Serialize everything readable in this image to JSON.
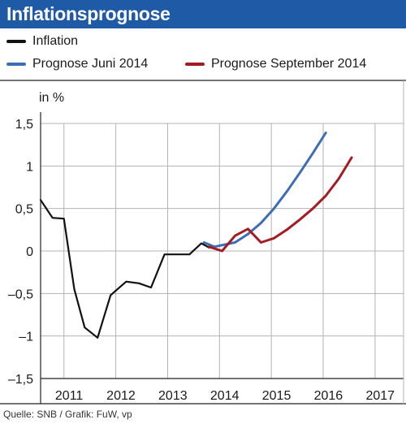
{
  "title": "Inflationsprognose",
  "legend": [
    {
      "label": "Inflation",
      "color": "#111111"
    },
    {
      "label": "Prognose Juni 2014",
      "color": "#3d6db5"
    },
    {
      "label": "Prognose September 2014",
      "color": "#a31c22"
    }
  ],
  "source": "Quelle: SNB / Grafik: FuW, vp",
  "chart_data": {
    "type": "line",
    "ylabel": "in %",
    "ylim": [
      -1.5,
      1.5
    ],
    "yticks": [
      1.5,
      1,
      0.5,
      0,
      -0.5,
      -1,
      -1.5
    ],
    "ytick_labels": [
      "1,5",
      "1",
      "0,5",
      "0",
      "–0,5",
      "–1",
      "–1,5"
    ],
    "xlim": [
      2010.75,
      2017.75
    ],
    "xticks": [
      2011,
      2012,
      2013,
      2014,
      2015,
      2016,
      2017
    ],
    "grid": true,
    "legend_position": "top-left",
    "series": [
      {
        "name": "Inflation",
        "color": "#111111",
        "points": [
          [
            2010.75,
            0.6
          ],
          [
            2010.98,
            0.39
          ],
          [
            2011.2,
            0.38
          ],
          [
            2011.4,
            -0.45
          ],
          [
            2011.6,
            -0.9
          ],
          [
            2011.85,
            -1.02
          ],
          [
            2012.1,
            -0.52
          ],
          [
            2012.4,
            -0.36
          ],
          [
            2012.65,
            -0.38
          ],
          [
            2012.88,
            -0.43
          ],
          [
            2013.14,
            -0.04
          ],
          [
            2013.4,
            -0.04
          ],
          [
            2013.62,
            -0.04
          ],
          [
            2013.85,
            0.09
          ],
          [
            2014.0,
            0.04
          ]
        ]
      },
      {
        "name": "Prognose Juni 2014",
        "color": "#3d6db5",
        "points": [
          [
            2013.9,
            0.1
          ],
          [
            2014.1,
            0.05
          ],
          [
            2014.5,
            0.1
          ],
          [
            2014.75,
            0.2
          ],
          [
            2015.0,
            0.33
          ],
          [
            2015.25,
            0.5
          ],
          [
            2015.5,
            0.7
          ],
          [
            2015.75,
            0.92
          ],
          [
            2016.0,
            1.15
          ],
          [
            2016.25,
            1.39
          ]
        ]
      },
      {
        "name": "Prognose September 2014",
        "color": "#a31c22",
        "points": [
          [
            2014.0,
            0.05
          ],
          [
            2014.25,
            0.0
          ],
          [
            2014.5,
            0.18
          ],
          [
            2014.75,
            0.26
          ],
          [
            2015.0,
            0.1
          ],
          [
            2015.25,
            0.15
          ],
          [
            2015.5,
            0.25
          ],
          [
            2015.75,
            0.37
          ],
          [
            2016.0,
            0.5
          ],
          [
            2016.25,
            0.65
          ],
          [
            2016.5,
            0.85
          ],
          [
            2016.75,
            1.1
          ]
        ]
      }
    ]
  }
}
